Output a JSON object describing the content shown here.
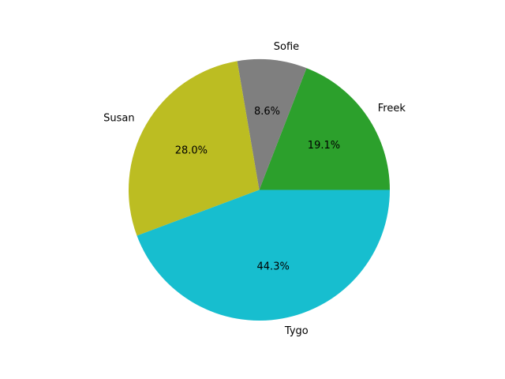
{
  "chart_data": {
    "type": "pie",
    "title": "",
    "start_angle_deg": 0,
    "direction": "counterclockwise",
    "slices": [
      {
        "label": "Freek",
        "value": 19.1,
        "pct_label": "19.1%",
        "color": "#2ca02c"
      },
      {
        "label": "Sofie",
        "value": 8.6,
        "pct_label": "8.6%",
        "color": "#7f7f7f"
      },
      {
        "label": "Susan",
        "value": 28.0,
        "pct_label": "28.0%",
        "color": "#bcbd22"
      },
      {
        "label": "Tygo",
        "value": 44.3,
        "pct_label": "44.3%",
        "color": "#17becf"
      }
    ]
  }
}
